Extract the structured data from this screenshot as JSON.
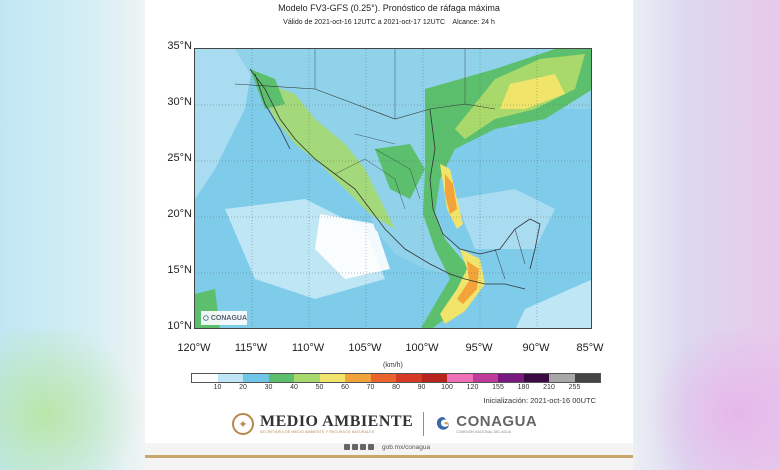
{
  "header": {
    "title": "Modelo FV3-GFS (0.25°). Pronóstico de ráfaga máxima",
    "subtitle": "Válido de 2021-oct-16 12UTC a 2021-oct-17 12UTC    Alcance: 24 h"
  },
  "map": {
    "lat_labels": [
      "35°N",
      "30°N",
      "25°N",
      "20°N",
      "15°N",
      "10°N"
    ],
    "lon_labels": [
      "120°W",
      "115°W",
      "110°W",
      "105°W",
      "100°W",
      "95°W",
      "90°W",
      "85°W"
    ],
    "extent": {
      "lon_min": -120,
      "lon_max": -85,
      "lat_min": 10,
      "lat_max": 35
    },
    "watermark": "CONAGUA"
  },
  "colorbar": {
    "unit": "(km/h)",
    "labels": [
      "10",
      "20",
      "30",
      "40",
      "50",
      "60",
      "70",
      "80",
      "90",
      "100",
      "120",
      "155",
      "180",
      "210",
      "255"
    ],
    "colors": [
      "#ffffff",
      "#bfe6f5",
      "#6ec6e8",
      "#5bbf6e",
      "#a9d96b",
      "#f0e46a",
      "#f2a33a",
      "#e8642a",
      "#d63a24",
      "#b8231c",
      "#f070b8",
      "#c03a9c",
      "#7a1a80",
      "#3a0a40",
      "#a8a8a8",
      "#444444"
    ]
  },
  "initialization": "Inicialización: 2021-oct-16 00UTC",
  "logos": {
    "medio_ambiente": "MEDIO AMBIENTE",
    "medio_ambiente_sub": "SECRETARÍA DE MEDIO AMBIENTE Y RECURSOS NATURALES",
    "conagua": "CONAGUA",
    "conagua_sub": "COMISIÓN NACIONAL DEL AGUA"
  },
  "footer": {
    "website": "gob.mx/conagua"
  }
}
